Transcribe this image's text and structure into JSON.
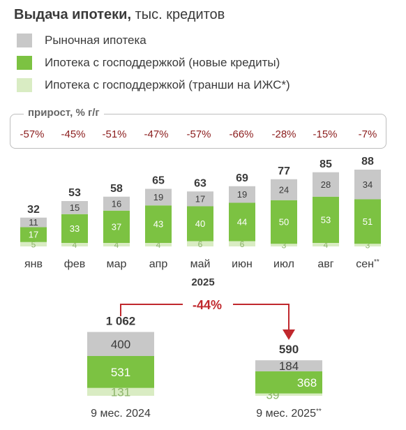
{
  "title_bold": "Выдача ипотеки,",
  "title_rest": " тыс. кредитов",
  "legend": [
    {
      "label": "Рыночная ипотека",
      "color": "#c8c8c8"
    },
    {
      "label": "Ипотека с господдержкой (новые кредиты)",
      "color": "#7cc242"
    },
    {
      "label": "Ипотека с господдержкой (транши на ИЖС*)",
      "color": "#d9ecc3"
    }
  ],
  "growth": {
    "label": "прирост, % г/г",
    "values": [
      "-57%",
      "-45%",
      "-51%",
      "-47%",
      "-57%",
      "-66%",
      "-28%",
      "-15%",
      "-7%"
    ],
    "color": "#8b1c1c"
  },
  "colors": {
    "market": "#c8c8c8",
    "state": "#7cc242",
    "izhs": "#d9ecc3",
    "arrow": "#c0282d"
  },
  "chart_data": [
    {
      "type": "bar",
      "stacked": true,
      "categories": [
        "янв",
        "фев",
        "мар",
        "апр",
        "май",
        "июн",
        "июл",
        "авг",
        "сен"
      ],
      "category_marks": [
        "",
        "",
        "",
        "",
        "",
        "",
        "",
        "",
        "**"
      ],
      "xlabel": "2025",
      "series": [
        {
          "name": "Ипотека с господдержкой (транши на ИЖС*)",
          "values": [
            5,
            4,
            4,
            4,
            6,
            6,
            3,
            4,
            3
          ]
        },
        {
          "name": "Ипотека с господдержкой (новые кредиты)",
          "values": [
            17,
            33,
            37,
            43,
            40,
            44,
            50,
            53,
            51
          ]
        },
        {
          "name": "Рыночная ипотека",
          "values": [
            11,
            15,
            16,
            19,
            17,
            19,
            24,
            28,
            34
          ]
        }
      ],
      "totals": [
        "32",
        "53",
        "58",
        "65",
        "63",
        "69",
        "77",
        "85",
        "88"
      ]
    },
    {
      "type": "bar",
      "stacked": true,
      "categories": [
        "9 мес. 2024",
        "9 мес. 2025"
      ],
      "category_marks": [
        "",
        "**"
      ],
      "series": [
        {
          "name": "Ипотека с господдержкой (транши на ИЖС*)",
          "values": [
            131,
            39
          ]
        },
        {
          "name": "Ипотека с господдержкой (новые кредиты)",
          "values": [
            531,
            368
          ]
        },
        {
          "name": "Рыночная ипотека",
          "values": [
            400,
            184
          ]
        }
      ],
      "totals": [
        "1 062",
        "590"
      ],
      "change_label": "-44%"
    }
  ]
}
